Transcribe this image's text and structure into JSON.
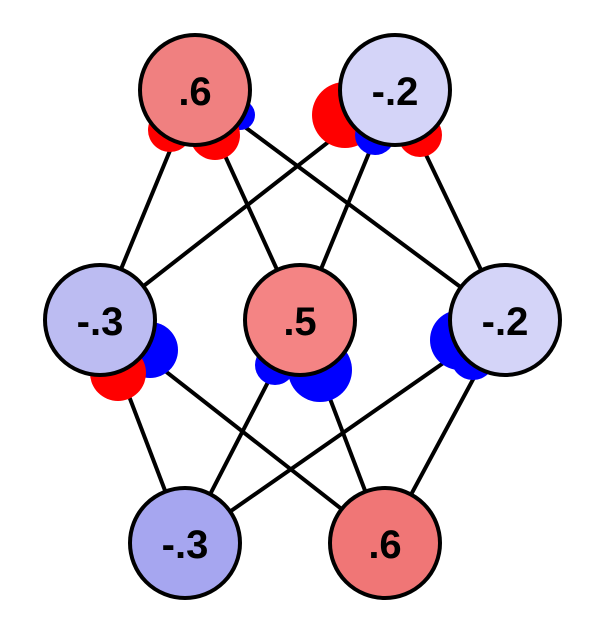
{
  "nodes": [
    {
      "id": "top-left",
      "label": ".6",
      "color": "#f08080"
    },
    {
      "id": "top-right",
      "label": "-.2",
      "color": "#d4d4f8"
    },
    {
      "id": "mid-left",
      "label": "-.3",
      "color": "#bcbcf2"
    },
    {
      "id": "mid-center",
      "label": ".5",
      "color": "#f48484"
    },
    {
      "id": "mid-right",
      "label": "-.2",
      "color": "#d4d4f8"
    },
    {
      "id": "bot-left",
      "label": "-.3",
      "color": "#a6a6f0"
    },
    {
      "id": "bot-right",
      "label": ".6",
      "color": "#f07676"
    }
  ],
  "edges": [
    [
      "top-left",
      "mid-left"
    ],
    [
      "top-left",
      "mid-center"
    ],
    [
      "top-left",
      "mid-right"
    ],
    [
      "top-right",
      "mid-left"
    ],
    [
      "top-right",
      "mid-center"
    ],
    [
      "top-right",
      "mid-right"
    ],
    [
      "mid-left",
      "bot-left"
    ],
    [
      "mid-left",
      "bot-right"
    ],
    [
      "mid-center",
      "bot-left"
    ],
    [
      "mid-center",
      "bot-right"
    ],
    [
      "mid-right",
      "bot-left"
    ],
    [
      "mid-right",
      "bot-right"
    ]
  ],
  "colors": {
    "positive_lobe": "#ff0000",
    "negative_lobe": "#0000ff",
    "edge": "#000000",
    "outline": "#000000"
  }
}
